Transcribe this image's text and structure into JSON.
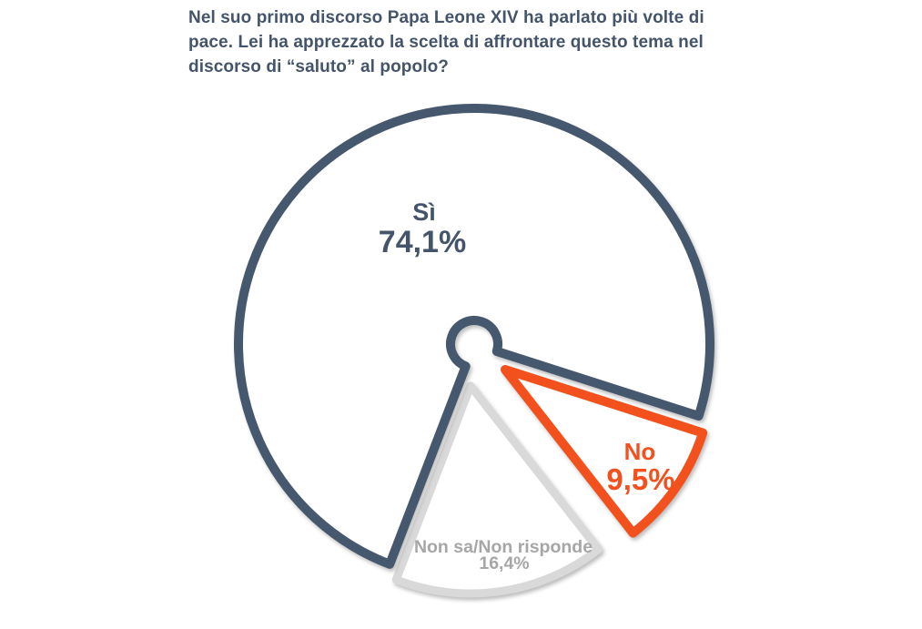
{
  "page": {
    "background": "#ffffff"
  },
  "header": {
    "lines": [
      "Nel suo primo discorso Papa Leone XIV ha parlato più volte di",
      "pace. Lei ha apprezzato la scelta di affrontare questo tema nel",
      "discorso di “saluto” al popolo?"
    ],
    "text_color": "#44546a"
  },
  "chart_data": {
    "type": "pie",
    "title": "Nel suo primo discorso Papa Leone XIV ha parlato più volte di pace. Lei ha apprezzato la scelta di affrontare questo tema nel discorso di “saluto” al popolo?",
    "units": "%",
    "total": 100,
    "direction": "clockwise",
    "start_angle_deg": 111,
    "legend": "none",
    "slices": [
      {
        "label": "Sì",
        "value": 74.1,
        "display": "74,1%",
        "stroke_color": "#46586e",
        "label_color": "#44546a",
        "exploded": false
      },
      {
        "label": "No",
        "value": 9.5,
        "display": "9,5%",
        "stroke_color": "#f2511d",
        "label_color": "#f2511d",
        "exploded": true
      },
      {
        "label": "Non sa/Non risponde",
        "value": 16.4,
        "display": "16,4%",
        "stroke_color": "#d9d9d9",
        "label_color": "#a6a6a6",
        "exploded": true
      }
    ]
  }
}
